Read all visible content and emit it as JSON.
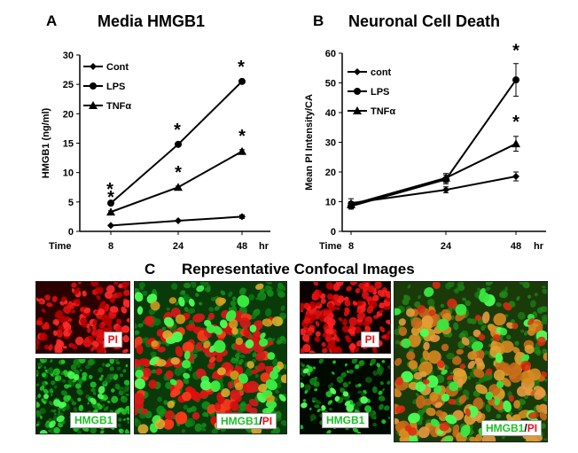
{
  "chart_data": [
    {
      "type": "line",
      "panel": "A",
      "title": "Media HMGB1",
      "ylabel": "HMGB1 (ng/ml)",
      "x_prefix": "Time",
      "x_unit": "hr",
      "categories": [
        "8",
        "24",
        "48"
      ],
      "ylim": [
        0,
        30
      ],
      "yticks": [
        "0",
        "5",
        "10",
        "15",
        "20",
        "25",
        "30"
      ],
      "grid": false,
      "legend_position": "top-left",
      "series": [
        {
          "name": "Cont",
          "values": [
            1.0,
            1.8,
            2.5
          ],
          "errors": [
            0.1,
            0.15,
            0.3
          ],
          "marker": "diamond",
          "stars": [
            false,
            false,
            false
          ]
        },
        {
          "name": "LPS",
          "values": [
            4.8,
            14.8,
            25.5
          ],
          "errors": [
            0.2,
            0.3,
            0.3
          ],
          "marker": "circle",
          "stars": [
            true,
            true,
            true
          ]
        },
        {
          "name": "TNFα",
          "values": [
            3.3,
            7.5,
            13.6
          ],
          "errors": [
            0.2,
            0.2,
            0.3
          ],
          "marker": "triangle",
          "stars": [
            true,
            true,
            true
          ]
        }
      ],
      "annotation": "*"
    },
    {
      "type": "line",
      "panel": "B",
      "title": "Neuronal Cell Death",
      "ylabel": "Mean PI Intensity/CA",
      "x_prefix": "Time",
      "x_unit": "hr",
      "categories": [
        "8",
        "24",
        "48"
      ],
      "ylim": [
        0,
        60
      ],
      "yticks": [
        "0",
        "10",
        "20",
        "30",
        "40",
        "50",
        "60"
      ],
      "grid": false,
      "legend_position": "top-left",
      "series": [
        {
          "name": "cont",
          "values": [
            9.5,
            14.0,
            18.5
          ],
          "errors": [
            1.5,
            1.0,
            1.5
          ],
          "marker": "diamond",
          "stars": [
            false,
            false,
            false
          ]
        },
        {
          "name": "LPS",
          "values": [
            8.5,
            17.5,
            51.0
          ],
          "errors": [
            1.0,
            1.5,
            5.5
          ],
          "marker": "circle",
          "stars": [
            false,
            false,
            true
          ]
        },
        {
          "name": "TNFα",
          "values": [
            9.0,
            18.0,
            29.5
          ],
          "errors": [
            1.0,
            1.5,
            2.5
          ],
          "marker": "triangle",
          "stars": [
            false,
            false,
            true
          ]
        }
      ],
      "annotation": "*"
    }
  ],
  "panel_c": {
    "letter": "C",
    "title": "Representative Confocal Images",
    "labels": {
      "pi": "PI",
      "hmgb1": "HMGB1",
      "merge_a": "HMGB1",
      "merge_slash": "/",
      "merge_b": "PI"
    },
    "colors": {
      "red_stain": "#e01010",
      "green_stain": "#22d62a",
      "label_red": "#e8101a",
      "label_green": "#1fbf2a"
    }
  }
}
